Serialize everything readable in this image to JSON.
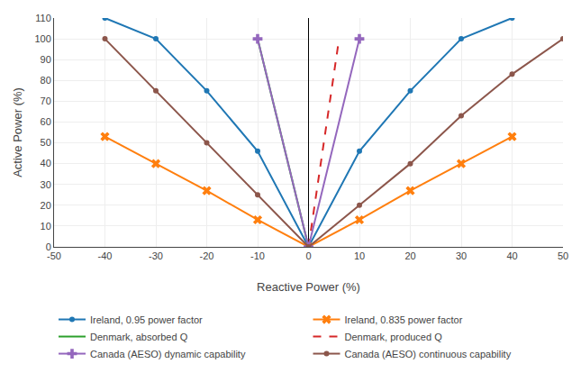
{
  "chart_data": {
    "type": "line",
    "x_label": "Reactive Power (%)",
    "y_label": "Active Power (%)",
    "xlim": [
      -50,
      50
    ],
    "ylim": [
      0,
      110
    ],
    "xticks": [
      -50,
      -40,
      -30,
      -20,
      -10,
      0,
      10,
      20,
      30,
      40,
      50
    ],
    "yticks": [
      0,
      10,
      20,
      30,
      40,
      50,
      60,
      70,
      80,
      90,
      100,
      110
    ],
    "grid": true,
    "legend": "bottom",
    "series": [
      {
        "name": "Ireland, 0.95 power factor",
        "marker": "o",
        "line_style": "solid",
        "x": [
          -40,
          -30,
          -20,
          -10,
          0,
          10,
          20,
          30,
          40
        ],
        "values": [
          110,
          100,
          75,
          46,
          0,
          46,
          75,
          100,
          110
        ]
      },
      {
        "name": "Ireland, 0.835 power factor",
        "marker": "x",
        "line_style": "solid",
        "x": [
          -40,
          -30,
          -20,
          -10,
          0,
          10,
          20,
          30,
          40
        ],
        "values": [
          53,
          40,
          27,
          13,
          0,
          13,
          27,
          40,
          53
        ]
      },
      {
        "name": "Denmark, absorbed Q",
        "marker": "none",
        "line_style": "solid",
        "x": [
          0,
          -10
        ],
        "values": [
          0,
          100
        ]
      },
      {
        "name": "Denmark, produced Q",
        "marker": "none",
        "line_style": "dashed",
        "x": [
          0,
          6
        ],
        "values": [
          0,
          100
        ]
      },
      {
        "name": "Canada (AESO) dynamic capability",
        "marker": "+",
        "line_style": "solid",
        "x": [
          -10,
          0,
          10
        ],
        "values": [
          100,
          0,
          100
        ]
      },
      {
        "name": "Canada (AESO) continuous capability",
        "marker": "o",
        "line_style": "solid",
        "x": [
          -40,
          -30,
          -20,
          -10,
          0,
          10,
          20,
          30,
          40,
          50
        ],
        "values": [
          100,
          75,
          50,
          25,
          0,
          20,
          40,
          63,
          83,
          100
        ]
      }
    ]
  }
}
